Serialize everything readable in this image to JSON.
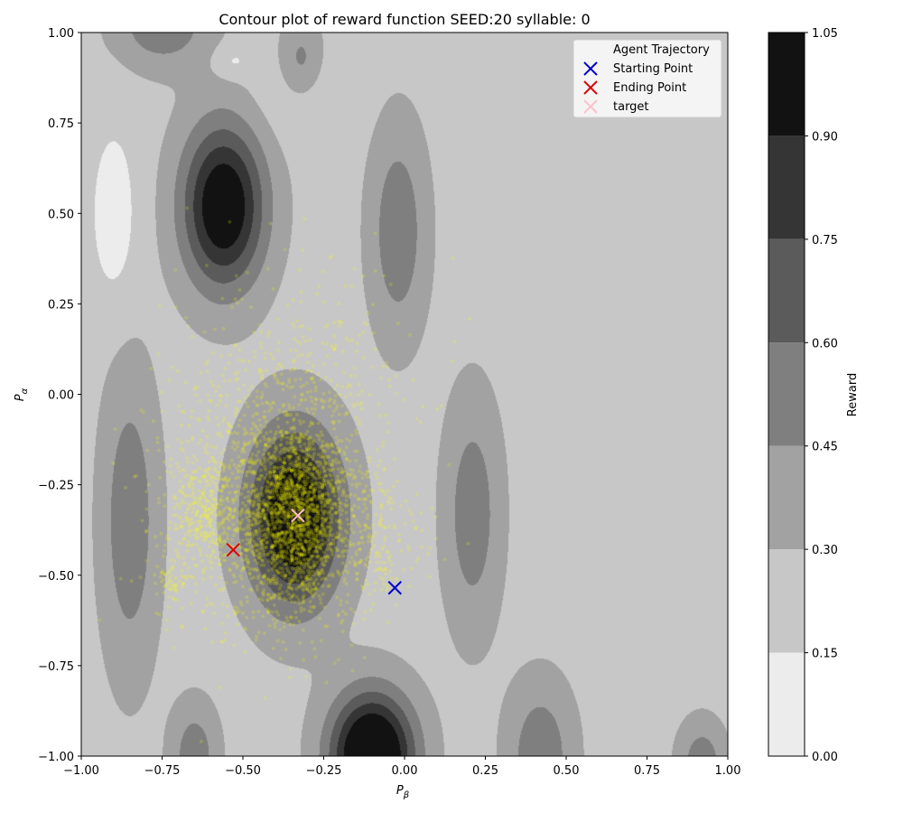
{
  "chart_data": {
    "type": "contour",
    "title": "Contour plot of reward function SEED:20 syllable: 0",
    "xlabel": "P",
    "xlabel_sub": "β",
    "ylabel": "P",
    "ylabel_sub": "α",
    "xlim": [
      -1.0,
      1.0
    ],
    "ylim": [
      -1.0,
      1.0
    ],
    "x_ticks": [
      -1.0,
      -0.75,
      -0.5,
      -0.25,
      0.0,
      0.25,
      0.5,
      0.75,
      1.0
    ],
    "x_tick_labels": [
      "−1.00",
      "−0.75",
      "−0.50",
      "−0.25",
      "0.00",
      "0.25",
      "0.50",
      "0.75",
      "1.00"
    ],
    "y_ticks": [
      -1.0,
      -0.75,
      -0.5,
      -0.25,
      0.0,
      0.25,
      0.5,
      0.75,
      1.0
    ],
    "y_tick_labels": [
      "−1.00",
      "−0.75",
      "−0.50",
      "−0.25",
      "0.00",
      "0.25",
      "0.50",
      "0.75",
      "1.00"
    ],
    "colorbar": {
      "label": "Reward",
      "levels": [
        0.0,
        0.15,
        0.3,
        0.45,
        0.6,
        0.75,
        0.9,
        1.05
      ],
      "tick_labels": [
        "0.00",
        "0.15",
        "0.30",
        "0.45",
        "0.60",
        "0.75",
        "0.90",
        "1.05"
      ],
      "colors": [
        "#ececec",
        "#c7c7c7",
        "#a2a2a2",
        "#7f7f7f",
        "#5b5b5b",
        "#353535",
        "#121212"
      ]
    },
    "reward_peaks": [
      {
        "x": -0.56,
        "y": 0.52,
        "amp": 0.85,
        "sx": 0.09,
        "sy": 0.16
      },
      {
        "x": -0.34,
        "y": -0.34,
        "amp": 0.9,
        "sx": 0.1,
        "sy": 0.17
      },
      {
        "x": -0.1,
        "y": -1.0,
        "amp": 1.05,
        "sx": 0.09,
        "sy": 0.12
      },
      {
        "x": -0.32,
        "y": 0.92,
        "amp": 0.3,
        "sx": 0.05,
        "sy": 0.08
      },
      {
        "x": -0.02,
        "y": 0.45,
        "amp": 0.32,
        "sx": 0.06,
        "sy": 0.2
      },
      {
        "x": 0.21,
        "y": -0.33,
        "amp": 0.3,
        "sx": 0.06,
        "sy": 0.22
      },
      {
        "x": -0.85,
        "y": -0.35,
        "amp": 0.32,
        "sx": 0.06,
        "sy": 0.28
      },
      {
        "x": 0.42,
        "y": -1.0,
        "amp": 0.32,
        "sx": 0.07,
        "sy": 0.14
      },
      {
        "x": -0.65,
        "y": -1.0,
        "amp": 0.3,
        "sx": 0.05,
        "sy": 0.1
      },
      {
        "x": 0.92,
        "y": -1.02,
        "amp": 0.3,
        "sx": 0.05,
        "sy": 0.08
      },
      {
        "x": -0.75,
        "y": 1.02,
        "amp": 0.32,
        "sx": 0.1,
        "sy": 0.08
      }
    ],
    "reward_dips": [
      {
        "x": -0.9,
        "y": 0.5,
        "amp": 0.2,
        "sx": 0.05,
        "sy": 0.17
      },
      {
        "x": -0.53,
        "y": 0.92,
        "amp": 0.14,
        "sx": 0.04,
        "sy": 0.03
      },
      {
        "x": -0.32,
        "y": 0.85,
        "amp": 0.12,
        "sx": 0.1,
        "sy": 0.1
      }
    ],
    "reward_background": 0.25,
    "trajectory": {
      "name": "Agent Trajectory",
      "color": "#ffff00",
      "opacity": 0.18,
      "clusters": [
        {
          "x": -0.34,
          "y": -0.34,
          "sx": 0.08,
          "sy": 0.13,
          "n": 1400
        },
        {
          "x": -0.45,
          "y": -0.28,
          "sx": 0.16,
          "sy": 0.2,
          "n": 900
        },
        {
          "x": -0.62,
          "y": -0.32,
          "sx": 0.05,
          "sy": 0.07,
          "n": 260
        },
        {
          "x": -0.71,
          "y": -0.52,
          "sx": 0.03,
          "sy": 0.03,
          "n": 60
        },
        {
          "x": -0.3,
          "y": -0.05,
          "sx": 0.18,
          "sy": 0.2,
          "n": 350
        },
        {
          "x": -0.1,
          "y": -0.4,
          "sx": 0.08,
          "sy": 0.1,
          "n": 200
        }
      ]
    },
    "start_point": {
      "name": "Starting Point",
      "x": -0.03,
      "y": -0.535,
      "color": "#0000cc"
    },
    "end_point": {
      "name": "Ending Point",
      "x": -0.53,
      "y": -0.43,
      "color": "#dd0000"
    },
    "target": {
      "name": "target",
      "x": -0.33,
      "y": -0.335,
      "color": "#ffc0cb"
    },
    "legend_position": "upper right"
  }
}
